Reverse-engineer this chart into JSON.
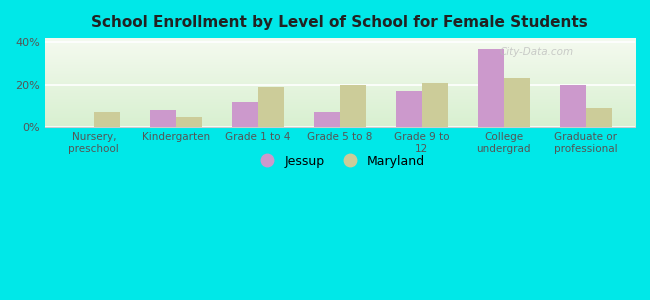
{
  "title": "School Enrollment by Level of School for Female Students",
  "categories": [
    "Nursery,\npreschool",
    "Kindergarten",
    "Grade 1 to 4",
    "Grade 5 to 8",
    "Grade 9 to\n12",
    "College\nundergrad",
    "Graduate or\nprofessional"
  ],
  "jessup": [
    0,
    8,
    12,
    7,
    17,
    37,
    20
  ],
  "maryland": [
    7,
    5,
    19,
    20,
    21,
    23,
    9
  ],
  "jessup_color": "#cc99cc",
  "maryland_color": "#cccc99",
  "background_outer": "#00e8e8",
  "background_inner_top": "#f5faf0",
  "background_inner_bottom": "#d8f0d0",
  "ylim": [
    0,
    42
  ],
  "yticks": [
    0,
    20,
    40
  ],
  "ytick_labels": [
    "0%",
    "20%",
    "40%"
  ],
  "watermark": "City-Data.com",
  "bar_width": 0.32,
  "legend_labels": [
    "Jessup",
    "Maryland"
  ]
}
